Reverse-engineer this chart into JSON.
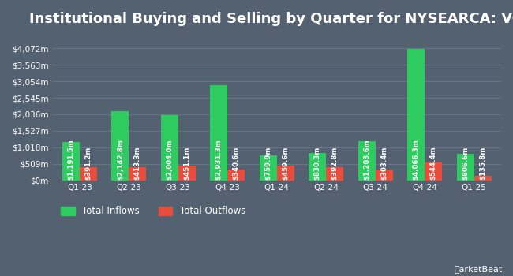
{
  "title": "Institutional Buying and Selling by Quarter for NYSEARCA: VO",
  "quarters": [
    "Q1-23",
    "Q2-23",
    "Q3-23",
    "Q4-23",
    "Q1-24",
    "Q2-24",
    "Q3-24",
    "Q4-24",
    "Q1-25"
  ],
  "inflows": [
    1191.5,
    2142.8,
    2004.0,
    2931.3,
    759.9,
    830.3,
    1203.6,
    4066.3,
    806.6
  ],
  "outflows": [
    391.2,
    413.3,
    451.1,
    340.6,
    459.6,
    392.8,
    303.4,
    544.4,
    135.8
  ],
  "inflow_labels": [
    "$1,191.5m",
    "$2,142.8m",
    "$2,004.0m",
    "$2,931.3m",
    "$759.9m",
    "$830.3m",
    "$1,203.6m",
    "$4,066.3m",
    "$806.6m"
  ],
  "outflow_labels": [
    "$391.2m",
    "$413.3m",
    "$451.1m",
    "$340.6m",
    "$459.6m",
    "$392.8m",
    "$303.4m",
    "$544.4m",
    "$135.8m"
  ],
  "inflow_color": "#2ecc60",
  "outflow_color": "#e74c3c",
  "background_color": "#546170",
  "plot_bg_color": "#546170",
  "grid_color": "#6b7a8d",
  "text_color": "#ffffff",
  "bar_width": 0.35,
  "ylim_max": 4590,
  "ytick_values": [
    0,
    509,
    1018,
    1527,
    2036,
    2545,
    3054,
    3563,
    4072
  ],
  "ytick_labels": [
    "$0m",
    "$509m",
    "$1,018m",
    "$1,527m",
    "$2,036m",
    "$2,545m",
    "$3,054m",
    "$3,563m",
    "$4,072m"
  ],
  "legend_inflow": "Total Inflows",
  "legend_outflow": "Total Outflows",
  "title_fontsize": 13,
  "label_fontsize": 6.2,
  "tick_fontsize": 7.5,
  "legend_fontsize": 8.5
}
